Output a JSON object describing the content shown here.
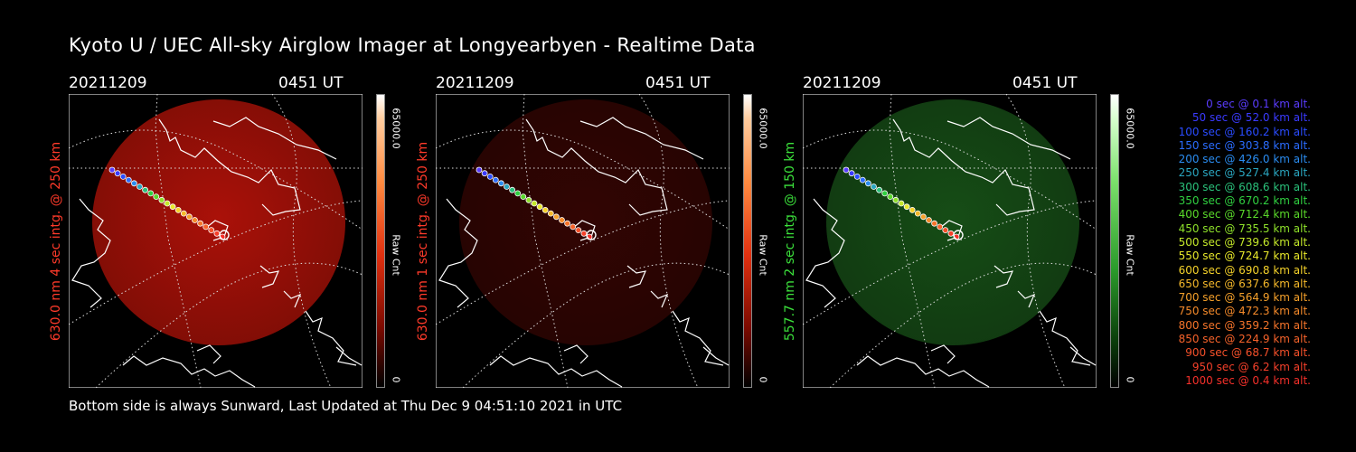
{
  "title": "Kyoto U / UEC All-sky Airglow Imager at Longyearbyen - Realtime Data",
  "footer": "Bottom side is always Sunward, Last Updated at Thu Dec  9 04:51:10 2021 in UTC",
  "colors": {
    "red": "#ff3a2a",
    "green": "#3be03b",
    "background": "#000000",
    "text": "#ffffff"
  },
  "panels": [
    {
      "date": "20211209",
      "time": "0451 UT",
      "side_label": "630.0 nm 4 sec intg. @ 250 km",
      "side_color": "#ff3a2a",
      "cbar_max": "65000.0",
      "cbar_min": "0",
      "cbar_unit": "Raw Cnt",
      "glow": "red",
      "glow_intensity": 0.85
    },
    {
      "date": "20211209",
      "time": "0451 UT",
      "side_label": "630.0 nm 1 sec intg. @ 250 km",
      "side_color": "#ff3a2a",
      "cbar_max": "65000.0",
      "cbar_min": "0",
      "cbar_unit": "Raw Cnt",
      "glow": "red",
      "glow_intensity": 0.25
    },
    {
      "date": "20211209",
      "time": "0451 UT",
      "side_label": "557.7 nm 2 sec intg. @ 150 km",
      "side_color": "#3be03b",
      "cbar_max": "65000.0",
      "cbar_min": "0",
      "cbar_unit": "Raw Cnt",
      "glow": "green",
      "glow_intensity": 0.55
    }
  ],
  "legend": [
    {
      "text": "0 sec @   0.1 km alt.",
      "color": "#5a3cff"
    },
    {
      "text": "50 sec @  52.0 km alt.",
      "color": "#3a3aff"
    },
    {
      "text": "100 sec @ 160.2 km alt.",
      "color": "#2a4cff"
    },
    {
      "text": "150 sec @ 303.8 km alt.",
      "color": "#2a6cff"
    },
    {
      "text": "200 sec @ 426.0 km alt.",
      "color": "#2a8cf0"
    },
    {
      "text": "250 sec @ 527.4 km alt.",
      "color": "#2aa6c0"
    },
    {
      "text": "300 sec @ 608.6 km alt.",
      "color": "#2ac07a"
    },
    {
      "text": "350 sec @ 670.2 km alt.",
      "color": "#30d040"
    },
    {
      "text": "400 sec @ 712.4 km alt.",
      "color": "#5ad82a"
    },
    {
      "text": "450 sec @ 735.5 km alt.",
      "color": "#8ee02a"
    },
    {
      "text": "500 sec @ 739.6 km alt.",
      "color": "#c4e82a"
    },
    {
      "text": "550 sec @ 724.7 km alt.",
      "color": "#e8e82a"
    },
    {
      "text": "600 sec @ 690.8 km alt.",
      "color": "#f5d22a"
    },
    {
      "text": "650 sec @ 637.6 km alt.",
      "color": "#f5b82a"
    },
    {
      "text": "700 sec @ 564.9 km alt.",
      "color": "#f5a02a"
    },
    {
      "text": "750 sec @ 472.3 km alt.",
      "color": "#f58a2a"
    },
    {
      "text": "800 sec @ 359.2 km alt.",
      "color": "#f5742a"
    },
    {
      "text": "850 sec @ 224.9 km alt.",
      "color": "#f5622a"
    },
    {
      "text": "900 sec @  68.7 km alt.",
      "color": "#f5502a"
    },
    {
      "text": "950 sec @   6.2 km alt.",
      "color": "#f5402a"
    },
    {
      "text": "1000 sec @   0.4 km alt.",
      "color": "#f5302a"
    }
  ]
}
